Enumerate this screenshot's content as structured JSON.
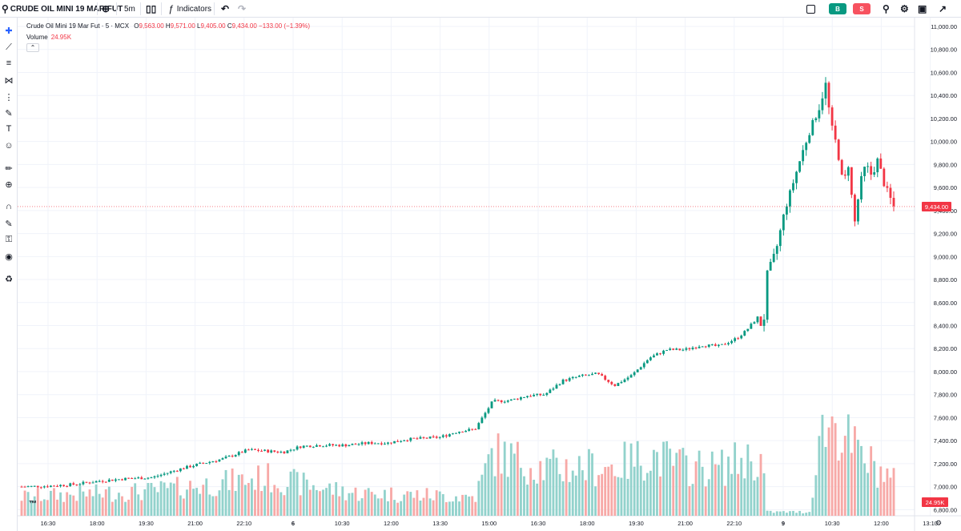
{
  "toolbar": {
    "symbol": "CRUDE OIL MINI 19 MAR FUT",
    "interval": "5m",
    "indicators_label": "Indicators",
    "buy_label": "B",
    "sell_label": "S"
  },
  "legend": {
    "title": "Crude Oil Mini 19 Mar Fut · 5 · MCX",
    "o_label": "O",
    "o_value": "9,563.00",
    "h_label": "H",
    "h_value": "9,571.00",
    "l_label": "L",
    "l_value": "9,405.00",
    "c_label": "C",
    "c_value": "9,434.00",
    "change": "−133.00 (−1.39%)",
    "volume_label": "Volume",
    "volume_value": "24.95K"
  },
  "colors": {
    "up": "#089981",
    "down": "#f23645",
    "vol_up": "#92d2cc",
    "vol_down": "#f7a9a7",
    "grid": "#f0f3fa"
  },
  "chart_data": {
    "type": "candlestick",
    "ylim": [
      6900,
      11000
    ],
    "y_ticks": [
      "11,000.00",
      "10,800.00",
      "10,600.00",
      "10,400.00",
      "10,200.00",
      "10,000.00",
      "9,800.00",
      "9,600.00",
      "9,400.00",
      "9,200.00",
      "9,000.00",
      "8,800.00",
      "8,600.00",
      "8,400.00",
      "8,200.00",
      "8,000.00",
      "7,800.00",
      "7,600.00",
      "7,400.00",
      "7,200.00",
      "7,000.00",
      "6,800.00"
    ],
    "x_ticks": [
      "16:30",
      "18:00",
      "19:30",
      "21:00",
      "22:10",
      "6",
      "10:30",
      "12:00",
      "13:30",
      "15:00",
      "16:30",
      "18:00",
      "19:30",
      "21:00",
      "22:10",
      "9",
      "10:30",
      "12:00",
      "13:10"
    ],
    "last_price": "9,434.00",
    "last_volume": "24.95K",
    "price_path": [
      [
        0,
        7000
      ],
      [
        0.03,
        7005
      ],
      [
        0.06,
        7020
      ],
      [
        0.09,
        7050
      ],
      [
        0.12,
        7070
      ],
      [
        0.15,
        7080
      ],
      [
        0.18,
        7150
      ],
      [
        0.2,
        7190
      ],
      [
        0.23,
        7240
      ],
      [
        0.26,
        7320
      ],
      [
        0.28,
        7310
      ],
      [
        0.3,
        7300
      ],
      [
        0.32,
        7350
      ],
      [
        0.34,
        7360
      ],
      [
        0.37,
        7360
      ],
      [
        0.4,
        7380
      ],
      [
        0.42,
        7380
      ],
      [
        0.44,
        7410
      ],
      [
        0.46,
        7420
      ],
      [
        0.48,
        7430
      ],
      [
        0.5,
        7480
      ],
      [
        0.52,
        7500
      ],
      [
        0.54,
        7740
      ],
      [
        0.56,
        7750
      ],
      [
        0.58,
        7790
      ],
      [
        0.6,
        7800
      ],
      [
        0.62,
        7920
      ],
      [
        0.64,
        7960
      ],
      [
        0.66,
        7980
      ],
      [
        0.68,
        7880
      ],
      [
        0.7,
        7970
      ],
      [
        0.72,
        8120
      ],
      [
        0.74,
        8190
      ],
      [
        0.76,
        8190
      ],
      [
        0.78,
        8230
      ],
      [
        0.8,
        8220
      ],
      [
        0.82,
        8290
      ],
      [
        0.83,
        8350
      ],
      [
        0.845,
        8480
      ],
      [
        0.85,
        8330
      ],
      [
        0.855,
        8850
      ],
      [
        0.865,
        9050
      ],
      [
        0.875,
        9400
      ],
      [
        0.885,
        9650
      ],
      [
        0.895,
        9900
      ],
      [
        0.905,
        10120
      ],
      [
        0.915,
        10300
      ],
      [
        0.922,
        10500
      ],
      [
        0.928,
        10150
      ],
      [
        0.935,
        9950
      ],
      [
        0.942,
        9620
      ],
      [
        0.948,
        9800
      ],
      [
        0.955,
        9280
      ],
      [
        0.962,
        9650
      ],
      [
        0.968,
        9800
      ],
      [
        0.975,
        9700
      ],
      [
        0.982,
        9850
      ],
      [
        0.988,
        9650
      ],
      [
        1,
        9434
      ]
    ],
    "volume_profile": [
      [
        0,
        1
      ],
      [
        0.15,
        1.3
      ],
      [
        0.28,
        2.0
      ],
      [
        0.38,
        1.2
      ],
      [
        0.52,
        1.0
      ],
      [
        0.54,
        3.3
      ],
      [
        0.6,
        2.5
      ],
      [
        0.68,
        2.6
      ],
      [
        0.72,
        3.2
      ],
      [
        0.76,
        2.6
      ],
      [
        0.8,
        2.5
      ],
      [
        0.83,
        3.0
      ],
      [
        0.85,
        2.8
      ],
      [
        0.855,
        0.2
      ],
      [
        0.905,
        0.2
      ],
      [
        0.912,
        4.0
      ],
      [
        0.93,
        5.0
      ],
      [
        0.96,
        3.2
      ],
      [
        1,
        1.8
      ]
    ]
  }
}
